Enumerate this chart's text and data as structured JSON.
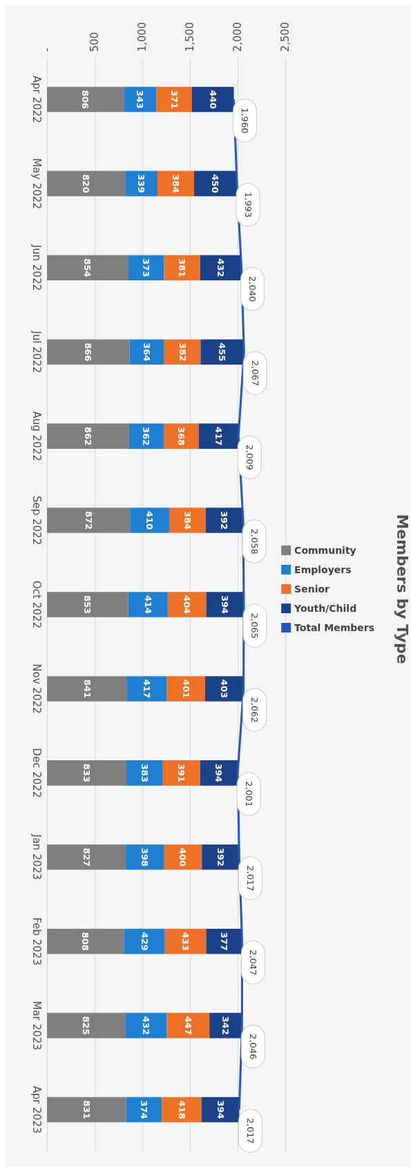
{
  "chart_data": {
    "type": "bar",
    "title": "Members by Type",
    "stacked": true,
    "categories": [
      "Apr 2022",
      "May 2022",
      "Jun 2022",
      "Jul 2022",
      "Aug 2022",
      "Sep 2022",
      "Oct 2022",
      "Nov 2022",
      "Dec 2022",
      "Jan 2023",
      "Feb 2023",
      "Mar 2023",
      "Apr 2023"
    ],
    "series": [
      {
        "name": "Community",
        "color": "#7f7f7f",
        "values": [
          806,
          820,
          854,
          866,
          862,
          872,
          853,
          841,
          833,
          827,
          808,
          825,
          831
        ]
      },
      {
        "name": "Employers",
        "color": "#1f7fd0",
        "values": [
          343,
          339,
          373,
          364,
          362,
          410,
          414,
          417,
          383,
          398,
          429,
          432,
          374
        ]
      },
      {
        "name": "Senior",
        "color": "#ed7127",
        "values": [
          371,
          384,
          381,
          382,
          368,
          384,
          404,
          401,
          391,
          400,
          433,
          447,
          418
        ]
      },
      {
        "name": "Youth/Child",
        "color": "#1b4288",
        "values": [
          440,
          450,
          432,
          455,
          417,
          392,
          394,
          403,
          394,
          392,
          377,
          342,
          394
        ]
      },
      {
        "name": "Total Members",
        "type": "line",
        "color": "#2457b8",
        "values": [
          1960,
          1993,
          2040,
          2067,
          2009,
          2058,
          2065,
          2062,
          2001,
          2017,
          2047,
          2046,
          2017
        ],
        "value_labels": [
          "1,960",
          "1,993",
          "2,040",
          "2,067",
          "2,009",
          "2,058",
          "2,065",
          "2,062",
          "2,001",
          "2,017",
          "2,047",
          "2,046",
          "2,017"
        ]
      }
    ],
    "orientation": "horizontal",
    "xlim": [
      0,
      2500
    ],
    "xticks": [
      {
        "value": 0,
        "label": "-"
      },
      {
        "value": 500,
        "label": "500"
      },
      {
        "value": 1000,
        "label": "1,000"
      },
      {
        "value": 1500,
        "label": "1,500"
      },
      {
        "value": 2000,
        "label": "2,000"
      },
      {
        "value": 2500,
        "label": "2,500"
      }
    ],
    "grid": "x",
    "legend": "top",
    "marker": "none",
    "data_labels": true
  }
}
